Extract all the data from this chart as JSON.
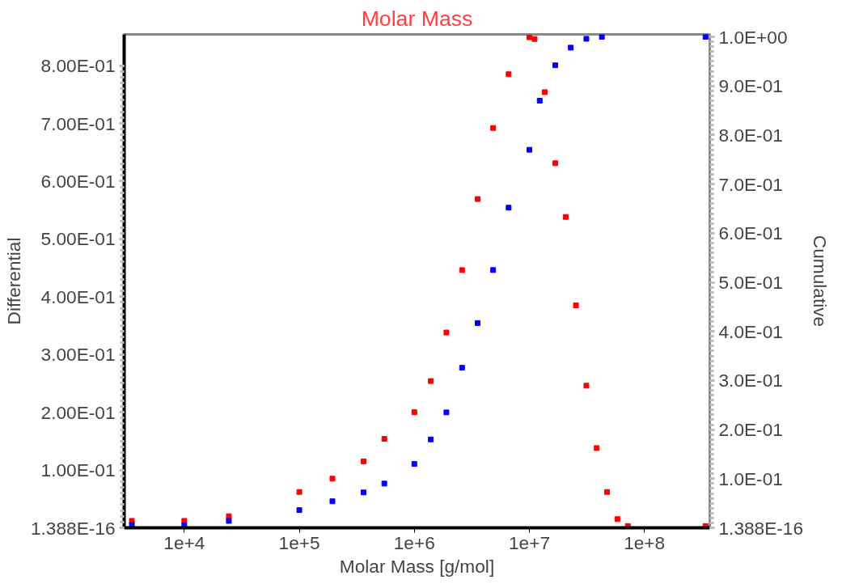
{
  "chart_data": {
    "type": "scatter",
    "title": "Molar Mass",
    "xlabel": "Molar Mass [g/mol]",
    "ylabel": "Differential",
    "y2label": "Cumulative",
    "log": "x",
    "grid": false,
    "marker": "square",
    "xlim": [
      3000,
      370000000
    ],
    "xticks": [
      {
        "value": 10000,
        "label": "1e+4"
      },
      {
        "value": 100000,
        "label": "1e+5"
      },
      {
        "value": 1000000,
        "label": "1e+6"
      },
      {
        "value": 10000000,
        "label": "1e+7"
      },
      {
        "value": 100000000,
        "label": "1e+8"
      }
    ],
    "ylim": [
      0,
      0.854
    ],
    "yticks": [
      {
        "value": 0,
        "label": "1.388E-16"
      },
      {
        "value": 0.1,
        "label": "1.00E-01"
      },
      {
        "value": 0.2,
        "label": "2.00E-01"
      },
      {
        "value": 0.3,
        "label": "3.00E-01"
      },
      {
        "value": 0.4,
        "label": "4.00E-01"
      },
      {
        "value": 0.5,
        "label": "5.00E-01"
      },
      {
        "value": 0.6,
        "label": "6.00E-01"
      },
      {
        "value": 0.7,
        "label": "7.00E-01"
      },
      {
        "value": 0.8,
        "label": "8.00E-01"
      }
    ],
    "y2lim": [
      0,
      1.005
    ],
    "y2ticks": [
      {
        "value": 0,
        "label": "1.388E-16"
      },
      {
        "value": 0.1,
        "label": "1.0E-01"
      },
      {
        "value": 0.2,
        "label": "2.0E-01"
      },
      {
        "value": 0.3,
        "label": "3.0E-01"
      },
      {
        "value": 0.4,
        "label": "4.0E-01"
      },
      {
        "value": 0.5,
        "label": "5.0E-01"
      },
      {
        "value": 0.6,
        "label": "6.0E-01"
      },
      {
        "value": 0.7,
        "label": "7.0E-01"
      },
      {
        "value": 0.8,
        "label": "8.0E-01"
      },
      {
        "value": 0.9,
        "label": "9.0E-01"
      },
      {
        "value": 1.0,
        "label": "1.0E+00"
      }
    ],
    "series": [
      {
        "color": "#ff0000",
        "x": [
          3500,
          10000,
          24400,
          100000,
          194000,
          362000,
          548000,
          1000000,
          1390000,
          1900000,
          2600000,
          3550000,
          4840000,
          6600000,
          10000000,
          11100000,
          13600000,
          16800000,
          20700000,
          25400000,
          31300000,
          38500000,
          47400000,
          58300000,
          71800000,
          340000000
        ],
        "values": [
          0.012,
          0.012,
          0.02,
          0.062,
          0.085,
          0.115,
          0.154,
          0.2,
          0.254,
          0.338,
          0.446,
          0.569,
          0.692,
          0.785,
          0.849,
          0.846,
          0.754,
          0.631,
          0.538,
          0.385,
          0.246,
          0.138,
          0.062,
          0.015,
          0.003,
          0.003
        ]
      },
      {
        "color": "#0000ff",
        "axis": "y2",
        "x": [
          3500,
          10000,
          24400,
          100000,
          194000,
          362000,
          548000,
          1000000,
          1390000,
          1900000,
          2600000,
          3550000,
          4840000,
          6600000,
          10000000,
          12300000,
          16800000,
          22900000,
          31300000,
          42700000,
          340000000
        ],
        "values": [
          0.006,
          0.005,
          0.014,
          0.036,
          0.054,
          0.072,
          0.09,
          0.13,
          0.18,
          0.235,
          0.326,
          0.417,
          0.525,
          0.652,
          0.77,
          0.87,
          0.942,
          0.978,
          0.996,
          1.0,
          1.0
        ]
      }
    ]
  }
}
